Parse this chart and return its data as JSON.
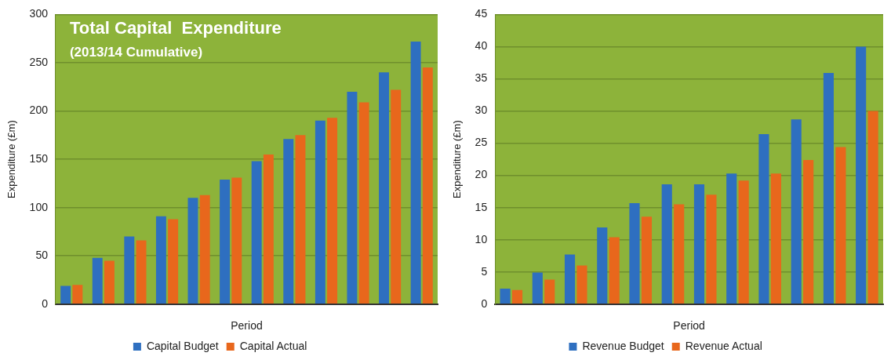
{
  "chart_data": [
    {
      "type": "bar",
      "title": "Total Capital  Expenditure",
      "subtitle": "(2013/14 Cumulative)",
      "xlabel": "Period",
      "ylabel": "Expenditure (£m)",
      "categories": [
        null,
        null,
        null,
        null,
        null,
        null,
        null,
        null,
        null,
        null,
        null,
        null
      ],
      "series": [
        {
          "name": "Capital Budget",
          "color": "#2e6fc0",
          "values": [
            19,
            48,
            70,
            91,
            110,
            129,
            148,
            171,
            190,
            220,
            240,
            272
          ]
        },
        {
          "name": "Capital Actual",
          "color": "#e8671c",
          "values": [
            20,
            45,
            66,
            88,
            113,
            131,
            155,
            175,
            193,
            209,
            222,
            245
          ]
        }
      ],
      "ylim": [
        0,
        300
      ],
      "yticks": [
        0,
        50,
        100,
        150,
        200,
        250,
        300
      ],
      "grid": "y",
      "legend": "bottom"
    },
    {
      "type": "bar",
      "xlabel": "Period",
      "ylabel": "Expenditure (£m)",
      "categories": [
        null,
        null,
        null,
        null,
        null,
        null,
        null,
        null,
        null,
        null,
        null,
        null
      ],
      "series": [
        {
          "name": "Revenue Budget",
          "color": "#2e6fc0",
          "values": [
            2.4,
            4.9,
            7.7,
            11.9,
            15.7,
            18.6,
            18.6,
            20.3,
            26.4,
            28.7,
            35.9,
            40
          ]
        },
        {
          "name": "Revenue Actual",
          "color": "#e8671c",
          "values": [
            2.2,
            3.8,
            6,
            10.4,
            13.6,
            15.5,
            17,
            19.2,
            20.3,
            22.4,
            24.4,
            30
          ]
        }
      ],
      "ylim": [
        0,
        45
      ],
      "yticks": [
        0,
        5,
        10,
        15,
        20,
        25,
        30,
        35,
        40,
        45
      ],
      "grid": "y",
      "legend": "bottom"
    }
  ]
}
